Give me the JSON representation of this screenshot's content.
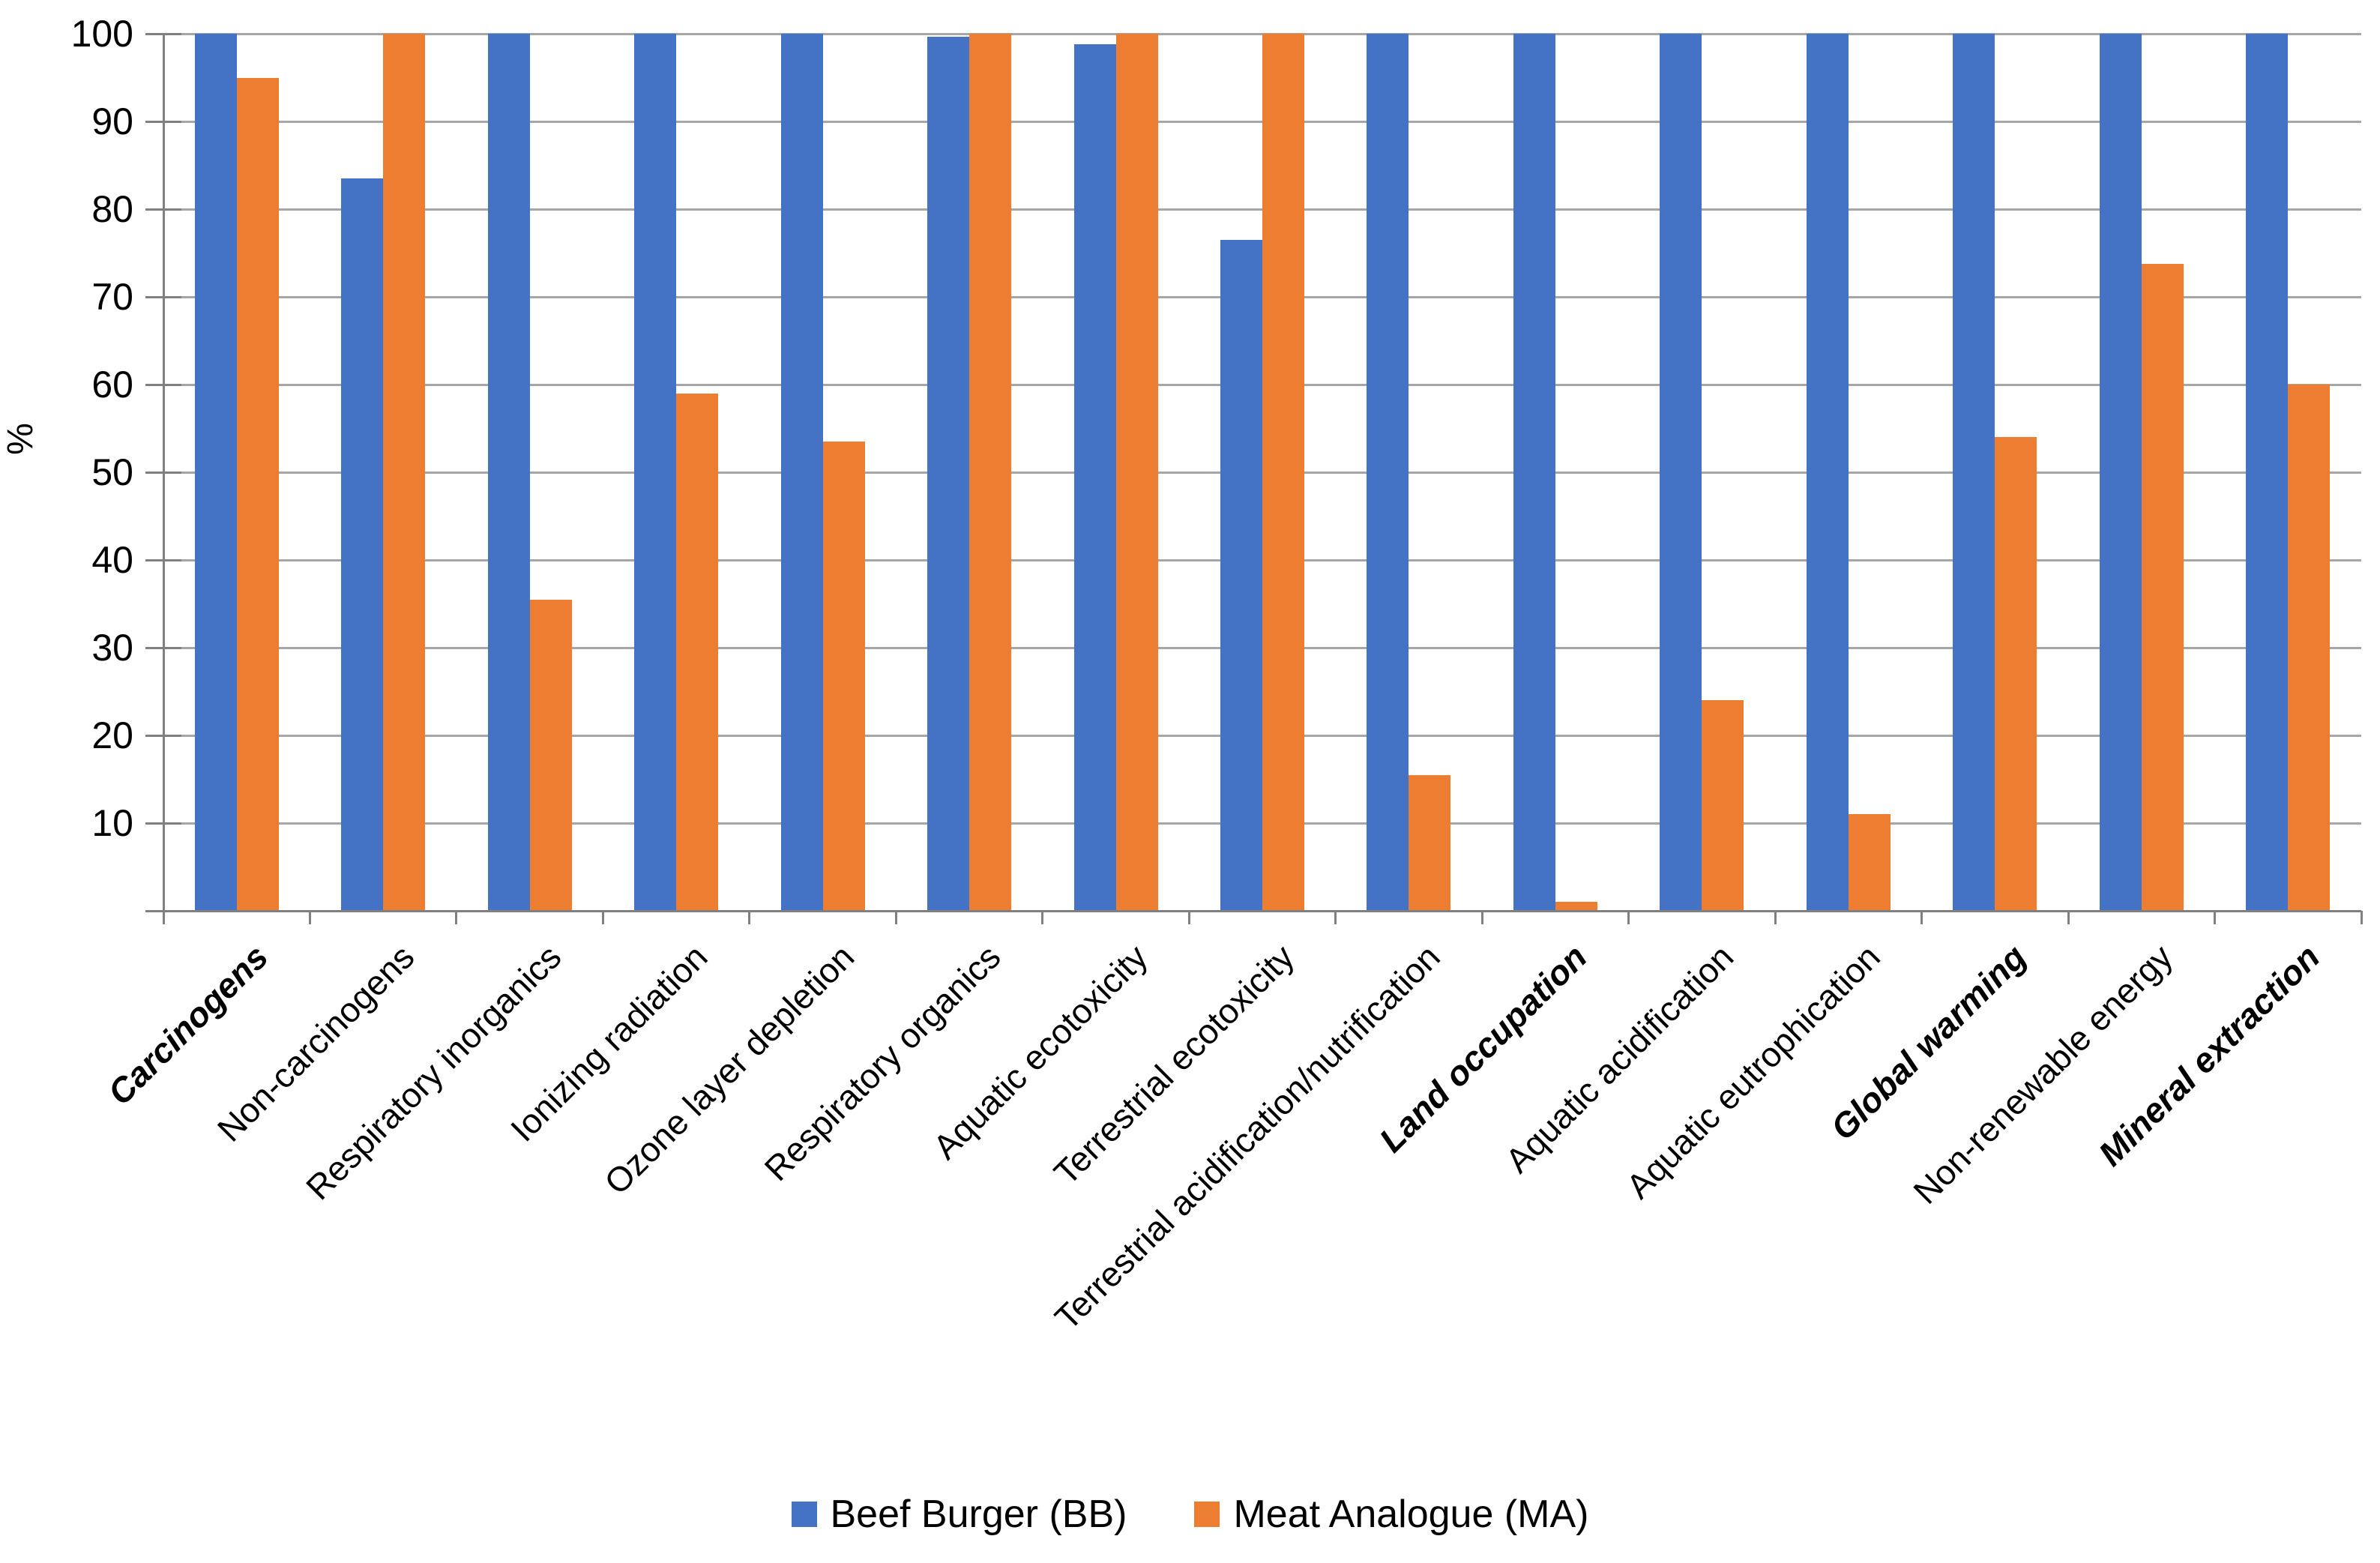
{
  "chart_data": {
    "type": "bar",
    "title": "",
    "xlabel": "",
    "ylabel": "%",
    "ylim": [
      0,
      100
    ],
    "ytick_step": 10,
    "ytick_labels": [
      "10",
      "20",
      "30",
      "40",
      "50",
      "60",
      "70",
      "80",
      "90",
      "100"
    ],
    "grid": "horizontal-major",
    "legend_position": "bottom-center",
    "categories": [
      "Carcinogens",
      "Non-carcinogens",
      "Respiratory inorganics",
      "Ionizing radiation",
      "Ozone layer depletion",
      "Respiratory organics",
      "Aquatic ecotoxicity",
      "Terrestrial ecotoxicity",
      "Terrestrial acidification/nutrification",
      "Land occupation",
      "Aquatic acidification",
      "Aquatic eutrophication",
      "Global warming",
      "Non-renewable energy",
      "Mineral extraction"
    ],
    "bold_category_indices": [
      0,
      9,
      12,
      14
    ],
    "series": [
      {
        "name": "Beef Burger (BB)",
        "color": "#4472C4",
        "values": [
          100,
          83.5,
          100,
          100,
          100,
          99.7,
          98.8,
          76.5,
          100,
          100,
          100,
          100,
          100,
          100,
          100
        ]
      },
      {
        "name": "Meat Analogue (MA)",
        "color": "#ED7D31",
        "values": [
          95,
          100,
          35.5,
          59,
          53.5,
          100,
          100,
          100,
          15.5,
          1,
          24,
          11,
          54,
          73.8,
          60
        ]
      }
    ]
  },
  "colors": {
    "gridline": "#a6a6a6",
    "axis": "#808080",
    "text": "#000000",
    "background": "#ffffff"
  }
}
